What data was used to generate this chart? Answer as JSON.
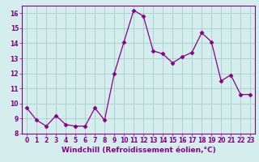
{
  "x": [
    0,
    1,
    2,
    3,
    4,
    5,
    6,
    7,
    8,
    9,
    10,
    11,
    12,
    13,
    14,
    15,
    16,
    17,
    18,
    19,
    20,
    21,
    22,
    23
  ],
  "y": [
    9.7,
    8.9,
    8.5,
    9.2,
    8.6,
    8.5,
    8.5,
    9.7,
    8.9,
    12.0,
    14.1,
    16.2,
    15.8,
    13.5,
    13.3,
    12.7,
    13.1,
    13.4,
    14.7,
    14.1,
    11.5,
    11.9,
    10.6,
    10.6
  ],
  "line_color": "#880088",
  "marker": "D",
  "marker_size": 2.5,
  "bg_color": "#d4eeee",
  "grid_color": "#aacccc",
  "xlabel": "Windchill (Refroidissement éolien,°C)",
  "ylim": [
    8,
    16.5
  ],
  "xlim": [
    -0.5,
    23.5
  ],
  "yticks": [
    8,
    9,
    10,
    11,
    12,
    13,
    14,
    15,
    16
  ],
  "xticks": [
    0,
    1,
    2,
    3,
    4,
    5,
    6,
    7,
    8,
    9,
    10,
    11,
    12,
    13,
    14,
    15,
    16,
    17,
    18,
    19,
    20,
    21,
    22,
    23
  ],
  "tick_label_fontsize": 5.5,
  "xlabel_fontsize": 6.5,
  "line_color_hex": "#880088",
  "tick_color": "#880088",
  "spine_color": "#880088"
}
